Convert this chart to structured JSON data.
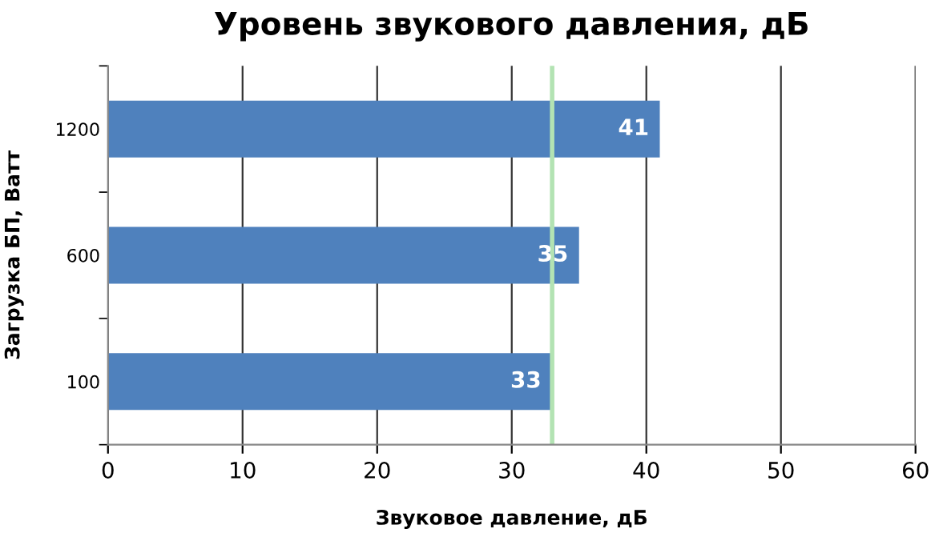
{
  "chart_data": {
    "type": "bar",
    "orientation": "horizontal",
    "title": "Уровень звукового давления, дБ",
    "xlabel": "Звуковое давление, дБ",
    "ylabel": "Загрузка БП, Ватт",
    "categories": [
      "1200",
      "600",
      "100"
    ],
    "series": [
      {
        "color": "#4f81bd",
        "values": [
          41,
          35,
          33
        ]
      }
    ],
    "data_labels": true,
    "xlim": [
      0,
      60
    ],
    "xticks": [
      0,
      10,
      20,
      30,
      40,
      50,
      60
    ],
    "grid": "x",
    "ref_lines": [
      {
        "axis": "x",
        "value": 33,
        "color": "#b3e3b3"
      }
    ]
  }
}
